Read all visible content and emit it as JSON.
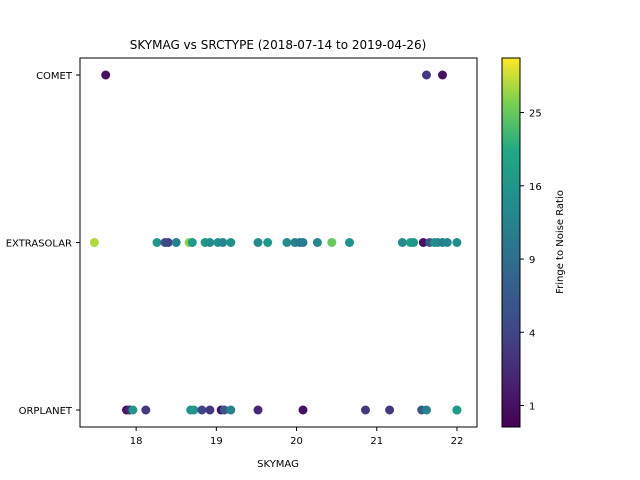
{
  "chart_data": {
    "type": "scatter",
    "title": "SKYMAG vs SRCTYPE (2018-07-14 to 2019-04-26)",
    "xlabel": "SKYMAG",
    "ylabel": "",
    "xlim": [
      17.3,
      22.25
    ],
    "xticks": [
      18,
      19,
      20,
      21,
      22
    ],
    "ycategories": [
      "ORPLANET",
      "EXTRASOLAR",
      "COMET"
    ],
    "colorbar": {
      "label": "Fringe to Noise Ratio",
      "colormap": "viridis",
      "scale": "sqrt",
      "range": [
        0.5,
        33
      ],
      "ticks": [
        1,
        4,
        9,
        16,
        25
      ]
    },
    "grid": false,
    "points": [
      {
        "x": 17.62,
        "y": "COMET",
        "c": 1
      },
      {
        "x": 21.62,
        "y": "COMET",
        "c": 3
      },
      {
        "x": 21.82,
        "y": "COMET",
        "c": 1
      },
      {
        "x": 17.48,
        "y": "EXTRASOLAR",
        "c": 29
      },
      {
        "x": 18.26,
        "y": "EXTRASOLAR",
        "c": 16
      },
      {
        "x": 18.36,
        "y": "EXTRASOLAR",
        "c": 5
      },
      {
        "x": 18.4,
        "y": "EXTRASOLAR",
        "c": 4
      },
      {
        "x": 18.5,
        "y": "EXTRASOLAR",
        "c": 12
      },
      {
        "x": 18.66,
        "y": "EXTRASOLAR",
        "c": 27
      },
      {
        "x": 18.7,
        "y": "EXTRASOLAR",
        "c": 17
      },
      {
        "x": 18.86,
        "y": "EXTRASOLAR",
        "c": 16
      },
      {
        "x": 18.92,
        "y": "EXTRASOLAR",
        "c": 14
      },
      {
        "x": 19.02,
        "y": "EXTRASOLAR",
        "c": 15
      },
      {
        "x": 19.08,
        "y": "EXTRASOLAR",
        "c": 13
      },
      {
        "x": 19.18,
        "y": "EXTRASOLAR",
        "c": 15
      },
      {
        "x": 19.52,
        "y": "EXTRASOLAR",
        "c": 14
      },
      {
        "x": 19.64,
        "y": "EXTRASOLAR",
        "c": 16
      },
      {
        "x": 19.88,
        "y": "EXTRASOLAR",
        "c": 14
      },
      {
        "x": 19.98,
        "y": "EXTRASOLAR",
        "c": 12
      },
      {
        "x": 20.04,
        "y": "EXTRASOLAR",
        "c": 10
      },
      {
        "x": 20.08,
        "y": "EXTRASOLAR",
        "c": 11
      },
      {
        "x": 20.26,
        "y": "EXTRASOLAR",
        "c": 13
      },
      {
        "x": 20.44,
        "y": "EXTRASOLAR",
        "c": 25
      },
      {
        "x": 20.66,
        "y": "EXTRASOLAR",
        "c": 15
      },
      {
        "x": 21.32,
        "y": "EXTRASOLAR",
        "c": 14
      },
      {
        "x": 21.42,
        "y": "EXTRASOLAR",
        "c": 18
      },
      {
        "x": 21.46,
        "y": "EXTRASOLAR",
        "c": 16
      },
      {
        "x": 21.58,
        "y": "EXTRASOLAR",
        "c": 1
      },
      {
        "x": 21.66,
        "y": "EXTRASOLAR",
        "c": 6
      },
      {
        "x": 21.72,
        "y": "EXTRASOLAR",
        "c": 15
      },
      {
        "x": 21.76,
        "y": "EXTRASOLAR",
        "c": 14
      },
      {
        "x": 21.82,
        "y": "EXTRASOLAR",
        "c": 12
      },
      {
        "x": 21.88,
        "y": "EXTRASOLAR",
        "c": 13
      },
      {
        "x": 22.0,
        "y": "EXTRASOLAR",
        "c": 14
      },
      {
        "x": 17.88,
        "y": "ORPLANET",
        "c": 1
      },
      {
        "x": 17.92,
        "y": "ORPLANET",
        "c": 2
      },
      {
        "x": 17.96,
        "y": "ORPLANET",
        "c": 16
      },
      {
        "x": 18.12,
        "y": "ORPLANET",
        "c": 3
      },
      {
        "x": 18.68,
        "y": "ORPLANET",
        "c": 15
      },
      {
        "x": 18.72,
        "y": "ORPLANET",
        "c": 16
      },
      {
        "x": 18.82,
        "y": "ORPLANET",
        "c": 4
      },
      {
        "x": 18.92,
        "y": "ORPLANET",
        "c": 3
      },
      {
        "x": 19.06,
        "y": "ORPLANET",
        "c": 1
      },
      {
        "x": 19.1,
        "y": "ORPLANET",
        "c": 6
      },
      {
        "x": 19.18,
        "y": "ORPLANET",
        "c": 12
      },
      {
        "x": 19.52,
        "y": "ORPLANET",
        "c": 2
      },
      {
        "x": 20.08,
        "y": "ORPLANET",
        "c": 1
      },
      {
        "x": 20.86,
        "y": "ORPLANET",
        "c": 3
      },
      {
        "x": 21.16,
        "y": "ORPLANET",
        "c": 3
      },
      {
        "x": 21.56,
        "y": "ORPLANET",
        "c": 6
      },
      {
        "x": 21.62,
        "y": "ORPLANET",
        "c": 12
      },
      {
        "x": 22.0,
        "y": "ORPLANET",
        "c": 20
      },
      {
        "x": 22.0,
        "y": "ORPLANET",
        "c": 17
      }
    ]
  }
}
